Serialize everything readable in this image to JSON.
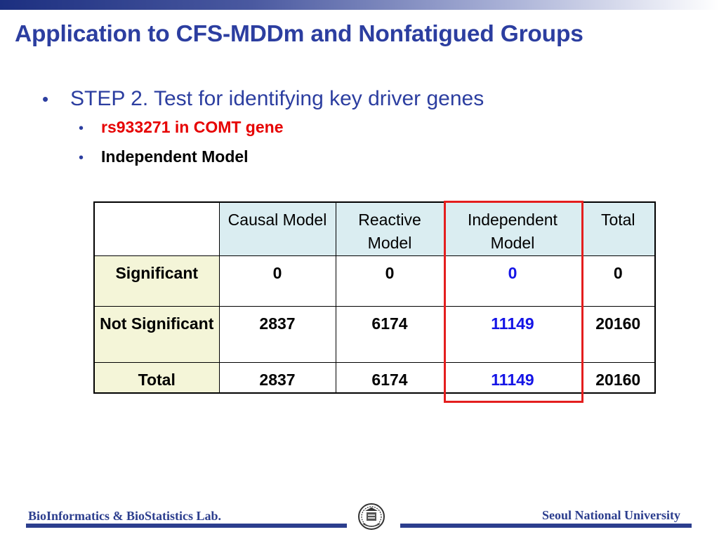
{
  "title": "Application to CFS-MDDm and Nonfatigued Groups",
  "bullets": {
    "step": "STEP 2. Test for identifying key driver genes",
    "sub1": "rs933271 in COMT gene",
    "sub2": "Independent Model"
  },
  "table": {
    "columns": [
      "Causal Model",
      "Reactive Model",
      "Independent Model",
      "Total"
    ],
    "rows": [
      {
        "label": "Significant",
        "values": [
          "0",
          "0",
          "0",
          "0"
        ]
      },
      {
        "label": "Not Significant",
        "values": [
          "2837",
          "6174",
          "11149",
          "20160"
        ]
      },
      {
        "label": "Total",
        "values": [
          "2837",
          "6174",
          "11149",
          "20160"
        ]
      }
    ]
  },
  "footer": {
    "left": "BioInformatics & BioStatistics Lab.",
    "right": "Seoul National University",
    "emblem_icon": "university-emblem-icon"
  },
  "colors": {
    "title": "#2c3ea0",
    "red": "#e60000",
    "highlight": "#e41e1e",
    "header_bg": "#daedf1",
    "rowhead_bg": "#f4f5d8",
    "blue_values": "#1414e6"
  }
}
